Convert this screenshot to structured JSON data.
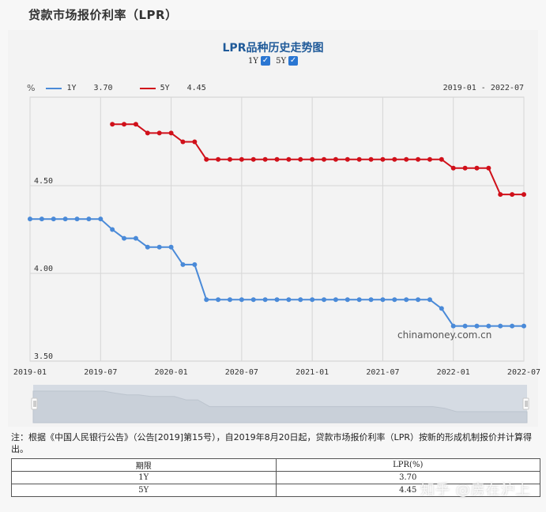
{
  "page": {
    "title": "贷款市场报价利率（LPR）"
  },
  "chart_header": {
    "title": "LPR品种历史走势图",
    "toggles": [
      {
        "label": "1Y",
        "checked": true
      },
      {
        "label": "5Y",
        "checked": true
      }
    ]
  },
  "legend": {
    "unit": "%",
    "items": [
      {
        "name": "1Y",
        "value": "3.70",
        "color": "#4a8ad8"
      },
      {
        "name": "5Y",
        "value": "4.45",
        "color": "#d0101a"
      }
    ],
    "range": "2019-01 - 2022-07"
  },
  "watermark_site": "chinamoney.com.cn",
  "chart_data": {
    "type": "line",
    "title": "LPR品种历史走势图",
    "xlabel": "",
    "ylabel": "%",
    "ylim": [
      3.5,
      4.9
    ],
    "y_ticks": [
      "3.50",
      "4.00",
      "4.50"
    ],
    "x_ticks": [
      "2019-01",
      "2019-07",
      "2020-01",
      "2020-07",
      "2021-01",
      "2021-07",
      "2022-01",
      "2022-07"
    ],
    "grid": true,
    "legend_position": "top-left",
    "x": [
      "2019-01",
      "2019-02",
      "2019-03",
      "2019-04",
      "2019-05",
      "2019-06",
      "2019-07",
      "2019-08",
      "2019-09",
      "2019-10",
      "2019-11",
      "2019-12",
      "2020-01",
      "2020-02",
      "2020-03",
      "2020-04",
      "2020-05",
      "2020-06",
      "2020-07",
      "2020-08",
      "2020-09",
      "2020-10",
      "2020-11",
      "2020-12",
      "2021-01",
      "2021-02",
      "2021-03",
      "2021-04",
      "2021-05",
      "2021-06",
      "2021-07",
      "2021-08",
      "2021-09",
      "2021-10",
      "2021-11",
      "2021-12",
      "2022-01",
      "2022-02",
      "2022-03",
      "2022-04",
      "2022-05",
      "2022-06",
      "2022-07"
    ],
    "series": [
      {
        "name": "1Y",
        "color": "#4a8ad8",
        "values": [
          4.31,
          4.31,
          4.31,
          4.31,
          4.31,
          4.31,
          4.31,
          4.25,
          4.2,
          4.2,
          4.15,
          4.15,
          4.15,
          4.05,
          4.05,
          3.85,
          3.85,
          3.85,
          3.85,
          3.85,
          3.85,
          3.85,
          3.85,
          3.85,
          3.85,
          3.85,
          3.85,
          3.85,
          3.85,
          3.85,
          3.85,
          3.85,
          3.85,
          3.85,
          3.85,
          3.8,
          3.7,
          3.7,
          3.7,
          3.7,
          3.7,
          3.7,
          3.7
        ]
      },
      {
        "name": "5Y",
        "color": "#d0101a",
        "values": [
          null,
          null,
          null,
          null,
          null,
          null,
          null,
          4.85,
          4.85,
          4.85,
          4.8,
          4.8,
          4.8,
          4.75,
          4.75,
          4.65,
          4.65,
          4.65,
          4.65,
          4.65,
          4.65,
          4.65,
          4.65,
          4.65,
          4.65,
          4.65,
          4.65,
          4.65,
          4.65,
          4.65,
          4.65,
          4.65,
          4.65,
          4.65,
          4.65,
          4.65,
          4.6,
          4.6,
          4.6,
          4.6,
          4.45,
          4.45,
          4.45
        ]
      }
    ]
  },
  "note": "注：根据《中国人民银行公告》（公告[2019]第15号），自2019年8月20日起，贷款市场报价利率（LPR）按新的形成机制报价并计算得出。",
  "table": {
    "headers": [
      "期限",
      "LPR(%)"
    ],
    "rows": [
      [
        "1Y",
        "3.70"
      ],
      [
        "5Y",
        "4.45"
      ]
    ]
  },
  "watermark": "知乎 @房在沪上"
}
